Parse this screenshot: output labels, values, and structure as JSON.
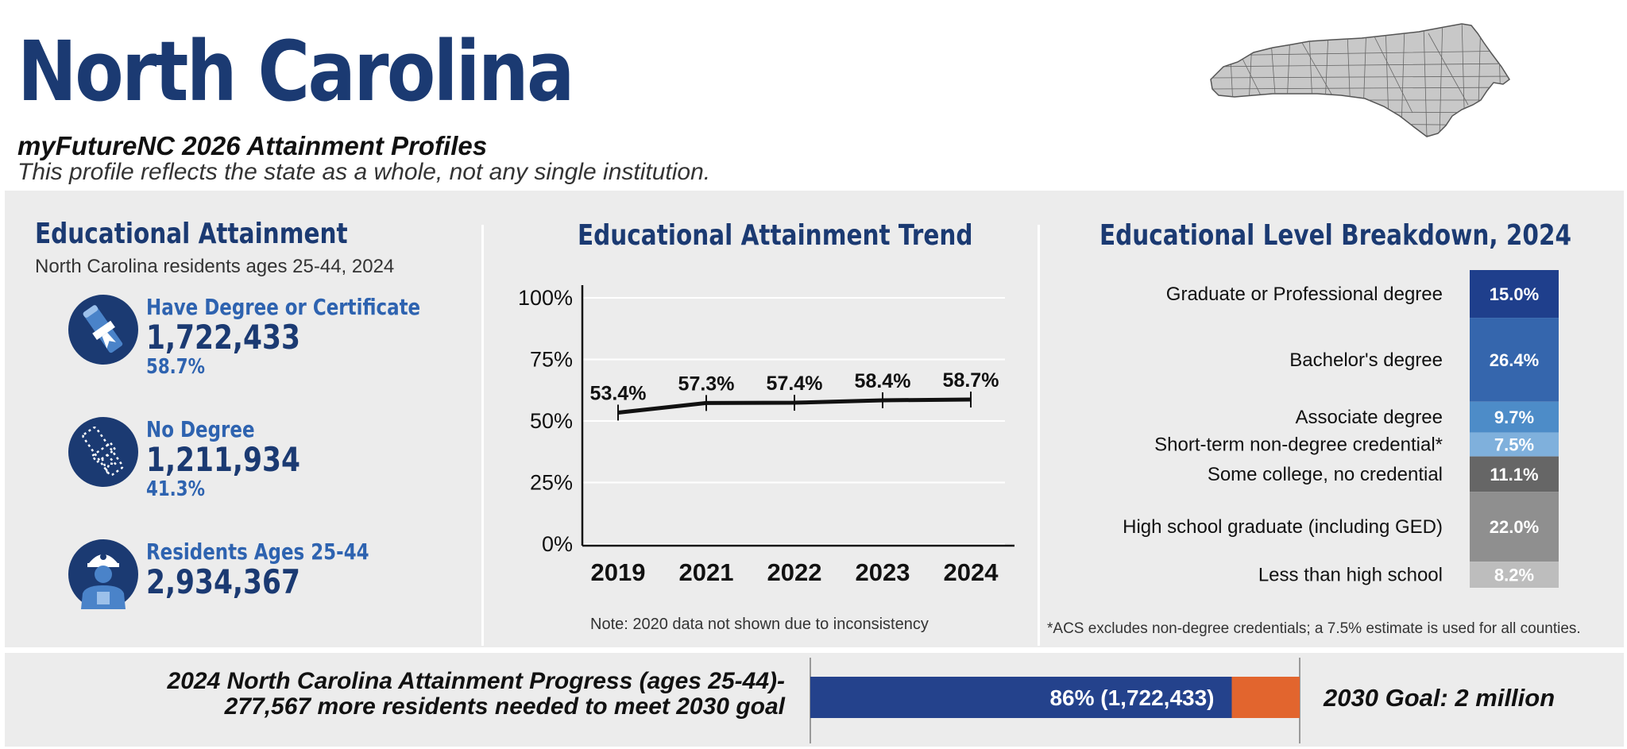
{
  "header": {
    "title": "North Carolina",
    "subtitle": "myFutureNC 2026 Attainment Profiles",
    "tagline": "This profile reflects the state as a whole, not any single institution."
  },
  "attainment": {
    "title": "Educational Attainment",
    "subtitle": "North Carolina residents ages 25-44, 2024",
    "stats": [
      {
        "label": "Have Degree or Certificate",
        "value": "1,722,433",
        "pct": "58.7%",
        "icon": "diploma-icon"
      },
      {
        "label": "No Degree",
        "value": "1,211,934",
        "pct": "41.3%",
        "icon": "dotted-diploma-icon"
      },
      {
        "label": "Residents Ages 25-44",
        "value": "2,934,367",
        "pct": "",
        "icon": "worker-icon"
      }
    ]
  },
  "trend": {
    "title": "Educational Attainment Trend",
    "note": "Note: 2020 data not shown due to inconsistency"
  },
  "breakdown": {
    "title": "Educational Level Breakdown, 2024",
    "note": "*ACS excludes non-degree credentials; a 7.5% estimate is used for all counties."
  },
  "progress": {
    "line1": "2024 North Carolina Attainment Progress (ages 25-44)-",
    "line2": "277,567 more residents needed to meet 2030 goal",
    "bar_label": "86% (1,722,433)",
    "goal": "2030 Goal: 2 million"
  },
  "colors": {
    "navy": "#1b3a72",
    "blue": "#2e63b0",
    "orange": "#e2652e",
    "panel": "#ececec"
  },
  "chart_data": [
    {
      "type": "line",
      "title": "Educational Attainment Trend",
      "x": [
        "2019",
        "2021",
        "2022",
        "2023",
        "2024"
      ],
      "values": [
        53.4,
        57.3,
        57.4,
        58.4,
        58.7
      ],
      "labels": [
        "53.4%",
        "57.3%",
        "57.4%",
        "58.4%",
        "58.7%"
      ],
      "yticks": [
        "0%",
        "25%",
        "50%",
        "75%",
        "100%"
      ],
      "ylim": [
        0,
        100
      ],
      "xlabel": "",
      "ylabel": "",
      "grid": true
    },
    {
      "type": "bar",
      "orientation": "stacked-vertical",
      "title": "Educational Level Breakdown, 2024",
      "categories": [
        "Graduate or Professional degree",
        "Bachelor's degree",
        "Associate degree",
        "Short-term non-degree credential*",
        "Some college, no credential",
        "High school graduate (including GED)",
        "Less than high school"
      ],
      "values": [
        15.0,
        26.4,
        9.7,
        7.5,
        11.1,
        22.0,
        8.2
      ],
      "labels": [
        "15.0%",
        "26.4%",
        "9.7%",
        "7.5%",
        "11.1%",
        "22.0%",
        "8.2%"
      ],
      "colors": [
        "#1f3f8c",
        "#3566ad",
        "#4d8cc8",
        "#7fb0dc",
        "#666666",
        "#8f8f8f",
        "#bdbdbd"
      ]
    },
    {
      "type": "bar",
      "orientation": "progress",
      "title": "2024 North Carolina Attainment Progress (ages 25-44)",
      "values": [
        1722433,
        277567
      ],
      "goal": 2000000,
      "percent": 86,
      "label": "86% (1,722,433)",
      "colors": [
        "#24428c",
        "#e2652e"
      ]
    }
  ]
}
